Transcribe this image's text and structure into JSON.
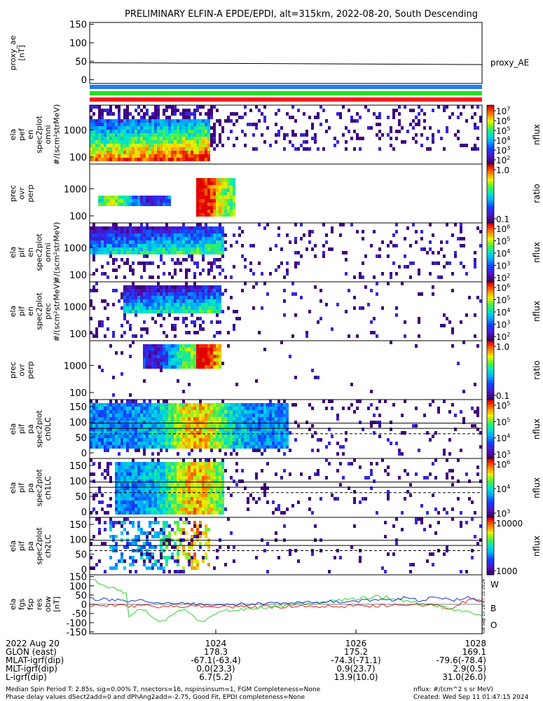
{
  "title": "PRELIMINARY ELFIN-A EPDE/EPDI, alt=315km, 2022-08-20, South Descending",
  "colors": {
    "red": "#e8231b",
    "blue": "#1a36d4",
    "green": "#2bd62b",
    "bar_blue": "#1f7ff0",
    "bar_green": "#22e022",
    "bar_red": "#ff1b1b"
  },
  "chart_data": [
    {
      "type": "line",
      "name": "proxy_ae",
      "ylabel": "proxy_ae\n[nT]",
      "ylim": [
        -10,
        155
      ],
      "yticks": [
        "150",
        "100",
        "50",
        "0"
      ],
      "ytick_values": [
        150,
        100,
        50,
        0
      ],
      "series": [
        {
          "name": "proxy_AE",
          "x": [
            0,
            1
          ],
          "values": [
            46,
            41
          ]
        }
      ]
    },
    {
      "type": "heatmap",
      "name": "ela-pef-en-spec2plot-omni",
      "ylabel": "ela\npef\nen\nspec2plot\nomni\n#/(scm²strMeV)",
      "yticks": [
        "1000",
        "100"
      ],
      "colorbar": {
        "label": "nflux",
        "ticks": [
          "10^7",
          "10^6",
          "10^5",
          "10^4",
          "10^3",
          "10^2"
        ]
      }
    },
    {
      "type": "heatmap",
      "name": "prec-ovr-perp-e",
      "ylabel": "prec\novr\nperp",
      "yticks": [
        "1000",
        "100"
      ],
      "colorbar": {
        "label": "ratio",
        "ticks": [
          "1.0",
          "0.1"
        ]
      }
    },
    {
      "type": "heatmap",
      "name": "ela-pif-en-spec2plot-omni",
      "ylabel": "ela\npif\nen\nspec2plot\nomni\n#/(scm²strMeV)",
      "yticks": [
        "1000",
        "100"
      ],
      "colorbar": {
        "label": "nflux",
        "ticks": [
          "10^6",
          "10^5",
          "10^4",
          "10^3",
          "10^2"
        ]
      }
    },
    {
      "type": "heatmap",
      "name": "ela-pif-en-spec2plot-prec",
      "ylabel": "ela\npif\nen\nspec2plot\nprec\n#/(scm²strMeV)",
      "yticks": [
        "1000",
        "100"
      ],
      "colorbar": {
        "label": "nflux",
        "ticks": [
          "10^6",
          "10^5",
          "10^4",
          "10^3",
          "10^2"
        ]
      }
    },
    {
      "type": "heatmap",
      "name": "prec-ovr-perp-i",
      "ylabel": "prec\novr\nperp",
      "yticks": [
        "1000",
        "100"
      ],
      "colorbar": {
        "label": "ratio",
        "ticks": [
          "1.0",
          "0.1"
        ]
      }
    },
    {
      "type": "heatmap",
      "name": "ela-pif-pa-spec2plot-ch0LC",
      "ylabel": "ela\npif\npa\nspec2plot\nch0LC",
      "yticks": [
        "150",
        "100",
        "50",
        "0"
      ],
      "colorbar": {
        "label": "nflux",
        "ticks": [
          "10^5",
          "10^5",
          "10^4",
          "10^3"
        ]
      }
    },
    {
      "type": "heatmap",
      "name": "ela-pif-pa-spec2plot-ch1LC",
      "ylabel": "ela\npif\npa\nspec2plot\nch1LC",
      "yticks": [
        "150",
        "100",
        "50",
        "0"
      ],
      "colorbar": {
        "label": "nflux",
        "ticks": [
          "10^6",
          "10^4",
          "10^3"
        ]
      }
    },
    {
      "type": "heatmap",
      "name": "ela-pif-pa-spec2plot-ch2LC",
      "ylabel": "ela\npif\npa\nspec2plot\nch2LC",
      "yticks": [
        "150",
        "100",
        "50",
        "0"
      ],
      "colorbar": {
        "label": "nflux",
        "ticks": [
          "10000",
          "1000"
        ]
      }
    },
    {
      "type": "line",
      "name": "ela-fgs-fsp-res-obw",
      "ylabel": "ela\nfgs\nfsp\nres\nobw\n[nT]",
      "ylim": [
        -160,
        160
      ],
      "yticks": [
        "150",
        "100",
        "50",
        "0",
        "-50",
        "-100",
        "-150"
      ],
      "ytick_values": [
        150,
        100,
        50,
        0,
        -50,
        -100,
        -150
      ],
      "series": [
        {
          "name": "W",
          "color": "#e8231b"
        },
        {
          "name": "B",
          "color": "#2bd62b"
        },
        {
          "name": "O",
          "color": "#1a36d4"
        }
      ]
    }
  ],
  "xaxis": {
    "ticks": [
      "1024",
      "1026",
      "1028"
    ],
    "rows": [
      {
        "label": "2022 Aug 20",
        "values": [
          "1024",
          "1026",
          "1028"
        ]
      },
      {
        "label": "GLON (east)",
        "values": [
          "178.3",
          "175.2",
          "169.1"
        ]
      },
      {
        "label": "MLAT-igrf(dip)",
        "values": [
          "-67.1(-63.4)",
          "-74.3(-71.1)",
          "-79.6(-78.4)"
        ]
      },
      {
        "label": "MLT-igrf(dip)",
        "values": [
          "0.0(23.3)",
          "0.9(23.7)",
          "2.9(0.5)"
        ]
      },
      {
        "label": "L-igrf(dip)",
        "values": [
          "6.7(5.2)",
          "13.9(10.0)",
          "31.0(26.0)"
        ]
      }
    ]
  },
  "footer": {
    "line1": "Median Spin Period T: 2.85s, sig=0.00% T, nsectors=16, nspinsinsum=1, FGM Completeness=None",
    "line2": "Phase delay values dSect2add=0 and dPhAng2add=-2.75, Good Fit, EPDI completeness=None",
    "units": "nflux: #/(cm^2 s sr MeV)",
    "created": "Created: Wed Sep 11 01:47:15 2024",
    "side_stamp": "Tue Sep 10 18:47:15 2024"
  }
}
